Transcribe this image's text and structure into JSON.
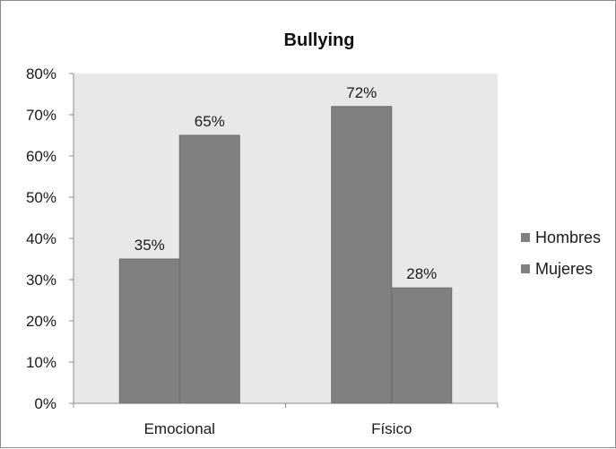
{
  "chart_data": {
    "type": "bar",
    "title": "Bullying",
    "xlabel": "",
    "ylabel": "",
    "categories": [
      "Emocional",
      "Físico"
    ],
    "series": [
      {
        "name": "Hombres",
        "values": [
          35,
          72
        ],
        "color": "#808080"
      },
      {
        "name": "Mujeres",
        "values": [
          65,
          28
        ],
        "color": "#808080"
      }
    ],
    "data_labels": [
      [
        "35%",
        "72%"
      ],
      [
        "65%",
        "28%"
      ]
    ],
    "ylim": [
      0,
      80
    ],
    "yticks": [
      0,
      10,
      20,
      30,
      40,
      50,
      60,
      70,
      80
    ],
    "ytick_labels": [
      "0%",
      "10%",
      "20%",
      "30%",
      "40%",
      "50%",
      "60%",
      "70%",
      "80%"
    ],
    "grid": false,
    "legend_position": "right",
    "plot_background": "#e8e8e8"
  }
}
